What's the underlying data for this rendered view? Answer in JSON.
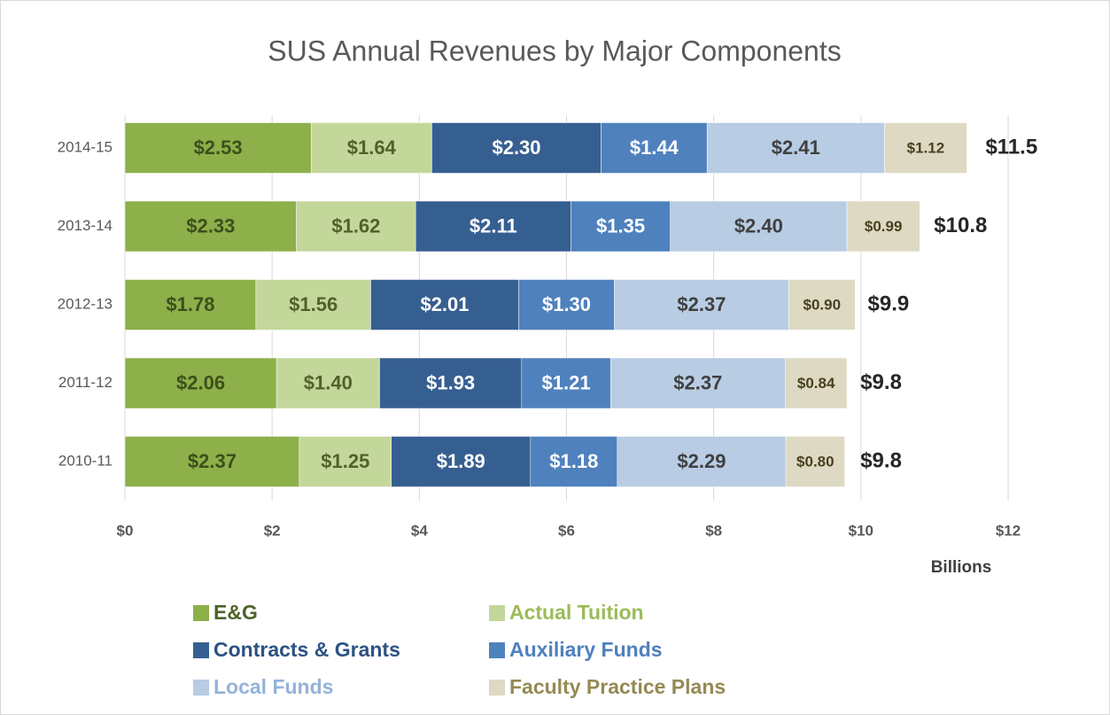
{
  "chart_data": {
    "type": "stacked_bar_horizontal",
    "title": "SUS Annual Revenues by Major Components",
    "x_axis_label": "Billions",
    "categories": [
      "2014-15",
      "2013-14",
      "2012-13",
      "2011-12",
      "2010-11"
    ],
    "xlim": [
      0,
      12
    ],
    "xticks": [
      {
        "value": 0,
        "label": "$0"
      },
      {
        "value": 2,
        "label": "$2"
      },
      {
        "value": 4,
        "label": "$4"
      },
      {
        "value": 6,
        "label": "$6"
      },
      {
        "value": 8,
        "label": "$8"
      },
      {
        "value": 10,
        "label": "$10"
      },
      {
        "value": 12,
        "label": "$12"
      }
    ],
    "grid": true,
    "legend": "bottom",
    "series": [
      {
        "name": "E&G",
        "color": "#8db04a",
        "legend_color": "#4f6228",
        "label_color": "#3d4f1c",
        "values": [
          2.53,
          2.33,
          1.78,
          2.06,
          2.37
        ],
        "value_labels": [
          "$2.53",
          "$2.33",
          "$1.78",
          "$2.06",
          "$2.37"
        ]
      },
      {
        "name": "Actual Tuition",
        "color": "#c4d79b",
        "legend_color": "#9bbb59",
        "label_color": "#4f6228",
        "values": [
          1.64,
          1.62,
          1.56,
          1.4,
          1.25
        ],
        "value_labels": [
          "$1.64",
          "$1.62",
          "$1.56",
          "$1.40",
          "$1.25"
        ]
      },
      {
        "name": "Contracts & Grants",
        "color": "#365f91",
        "legend_color": "#2c5282",
        "label_color": "#ffffff",
        "values": [
          2.3,
          2.11,
          2.01,
          1.93,
          1.89
        ],
        "value_labels": [
          "$2.30",
          "$2.11",
          "$2.01",
          "$1.93",
          "$1.89"
        ]
      },
      {
        "name": "Auxiliary Funds",
        "color": "#4f81bd",
        "legend_color": "#4f81bd",
        "label_color": "#ffffff",
        "values": [
          1.44,
          1.35,
          1.3,
          1.21,
          1.18
        ],
        "value_labels": [
          "$1.44",
          "$1.35",
          "$1.30",
          "$1.21",
          "$1.18"
        ]
      },
      {
        "name": "Local Funds",
        "color": "#b8cce4",
        "legend_color": "#95b3d7",
        "label_color": "#404040",
        "values": [
          2.41,
          2.4,
          2.37,
          2.37,
          2.29
        ],
        "value_labels": [
          "$2.41",
          "$2.40",
          "$2.37",
          "$2.37",
          "$2.29"
        ]
      },
      {
        "name": "Faculty Practice Plans",
        "color": "#ddd9c3",
        "legend_color": "#948a54",
        "label_color": "#4a3f1f",
        "values": [
          1.12,
          0.99,
          0.9,
          0.84,
          0.8
        ],
        "value_labels": [
          "$1.12",
          "$0.99",
          "$0.90",
          "$0.84",
          "$0.80"
        ]
      }
    ],
    "totals": {
      "values": [
        11.5,
        10.8,
        9.9,
        9.8,
        9.8
      ],
      "value_labels": [
        "$11.5",
        "$10.8",
        "$9.9",
        "$9.8",
        "$9.8"
      ]
    }
  }
}
